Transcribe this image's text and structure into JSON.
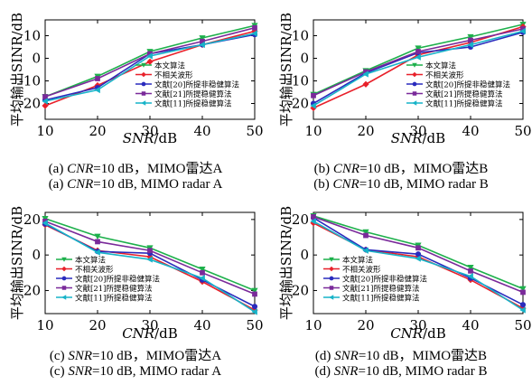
{
  "series_names": [
    "本文算法",
    "不相关波形",
    "文献[20]所提非稳健算法",
    "文献[21]所提稳健算法",
    "文献[11]所提稳健算法"
  ],
  "series_colors": [
    "#1db04b",
    "#e8202a",
    "#2a2bbd",
    "#7a2a9a",
    "#17b3c8"
  ],
  "series_markers": [
    "triangle-down",
    "diamond",
    "circle",
    "square",
    "triangle-left"
  ],
  "captions": [
    {
      "cn_var": "CNR",
      "cn_rest": "=10 dB，MIMO雷达A",
      "en_var": "CNR",
      "en_rest": "=10 dB, MIMO radar A"
    },
    {
      "cn_var": "CNR",
      "cn_rest": "=10 dB，MIMO雷达B",
      "en_var": "CNR",
      "en_rest": "=10 dB, MIMO radar B"
    },
    {
      "cn_var": "SNR",
      "cn_rest": "=10 dB，MIMO雷达A",
      "en_var": "SNR",
      "en_rest": "=10 dB, MIMO radar A"
    },
    {
      "cn_var": "SNR",
      "cn_rest": "=10 dB，MIMO雷达B",
      "en_var": "SNR",
      "en_rest": "=10 dB, MIMO radar B"
    }
  ],
  "caption_labels": [
    "(a)",
    "(b)",
    "(c)",
    "(d)"
  ],
  "chart_data": [
    {
      "type": "line",
      "panel": "a",
      "xlabel": "SNR/dB",
      "ylabel": "平均输出SINR/dB",
      "x": [
        10,
        20,
        30,
        40,
        50
      ],
      "xlim": [
        10,
        50
      ],
      "ylim": [
        -27,
        17
      ],
      "xticks": [
        10,
        20,
        30,
        40,
        50
      ],
      "yticks": [
        -20,
        -10,
        0,
        10
      ],
      "legend_position": "center-right",
      "series": [
        {
          "name": "本文算法",
          "values": [
            -17,
            -8,
            3,
            9,
            14.5
          ]
        },
        {
          "name": "不相关波形",
          "values": [
            -21,
            -12,
            -1.5,
            6,
            12
          ]
        },
        {
          "name": "文献[20]所提非稳健算法",
          "values": [
            -18.5,
            -13,
            2,
            6,
            10.5
          ]
        },
        {
          "name": "文献[21]所提稳健算法",
          "values": [
            -17,
            -9,
            2,
            7.5,
            13.5
          ]
        },
        {
          "name": "文献[11]所提稳健算法",
          "values": [
            -19,
            -14,
            1,
            6,
            11
          ]
        }
      ]
    },
    {
      "type": "line",
      "panel": "b",
      "xlabel": "SNR/dB",
      "ylabel": "平均输出SINR/dB",
      "x": [
        10,
        20,
        30,
        40,
        50
      ],
      "xlim": [
        10,
        50
      ],
      "ylim": [
        -27,
        17
      ],
      "xticks": [
        10,
        20,
        30,
        40,
        50
      ],
      "yticks": [
        -20,
        -10,
        0,
        10
      ],
      "legend_position": "center-right",
      "series": [
        {
          "name": "本文算法",
          "values": [
            -16,
            -5.5,
            4.5,
            9.5,
            15
          ]
        },
        {
          "name": "不相关波形",
          "values": [
            -22,
            -11.5,
            1.5,
            7,
            14
          ]
        },
        {
          "name": "文献[20]所提非稳健算法",
          "values": [
            -20,
            -6.5,
            2.5,
            5,
            11.5
          ]
        },
        {
          "name": "文献[21]所提稳健算法",
          "values": [
            -16.5,
            -6,
            3,
            8,
            13
          ]
        },
        {
          "name": "文献[11]所提稳健算法",
          "values": [
            -21,
            -7,
            0.5,
            6,
            12
          ]
        }
      ]
    },
    {
      "type": "line",
      "panel": "c",
      "xlabel": "CNR/dB",
      "ylabel": "平均输出SINR/dB",
      "x": [
        10,
        20,
        30,
        40,
        50
      ],
      "xlim": [
        10,
        50
      ],
      "ylim": [
        -33,
        24
      ],
      "xticks": [
        10,
        20,
        30,
        40,
        50
      ],
      "yticks": [
        -20,
        0,
        20
      ],
      "legend_position": "lower-left",
      "series": [
        {
          "name": "本文算法",
          "values": [
            20.5,
            10.5,
            4,
            -8,
            -20
          ]
        },
        {
          "name": "不相关波形",
          "values": [
            17,
            2.5,
            -1,
            -15,
            -31
          ]
        },
        {
          "name": "文献[20]所提非稳健算法",
          "values": [
            17.5,
            2,
            1,
            -14,
            -29
          ]
        },
        {
          "name": "文献[21]所提稳健算法",
          "values": [
            19,
            7.5,
            2.5,
            -10,
            -22
          ]
        },
        {
          "name": "文献[11]所提稳健算法",
          "values": [
            18,
            1.5,
            -2.5,
            -13,
            -32
          ]
        }
      ]
    },
    {
      "type": "line",
      "panel": "d",
      "xlabel": "CNR/dB",
      "ylabel": "平均输出SINR/dB",
      "x": [
        10,
        20,
        30,
        40,
        50
      ],
      "xlim": [
        10,
        50
      ],
      "ylim": [
        -33,
        24
      ],
      "xticks": [
        10,
        20,
        30,
        40,
        50
      ],
      "yticks": [
        -20,
        0,
        20
      ],
      "legend_position": "lower-left",
      "series": [
        {
          "name": "本文算法",
          "values": [
            22,
            13,
            5.5,
            -7,
            -19
          ]
        },
        {
          "name": "不相关波形",
          "values": [
            18,
            3,
            -1,
            -14,
            -30
          ]
        },
        {
          "name": "文献[20]所提非稳健算法",
          "values": [
            21,
            3,
            0.5,
            -13,
            -28
          ]
        },
        {
          "name": "文献[21]所提稳健算法",
          "values": [
            21.5,
            11,
            4,
            -9,
            -21
          ]
        },
        {
          "name": "文献[11]所提稳健算法",
          "values": [
            19,
            2.5,
            -2,
            -12,
            -31
          ]
        }
      ]
    }
  ]
}
